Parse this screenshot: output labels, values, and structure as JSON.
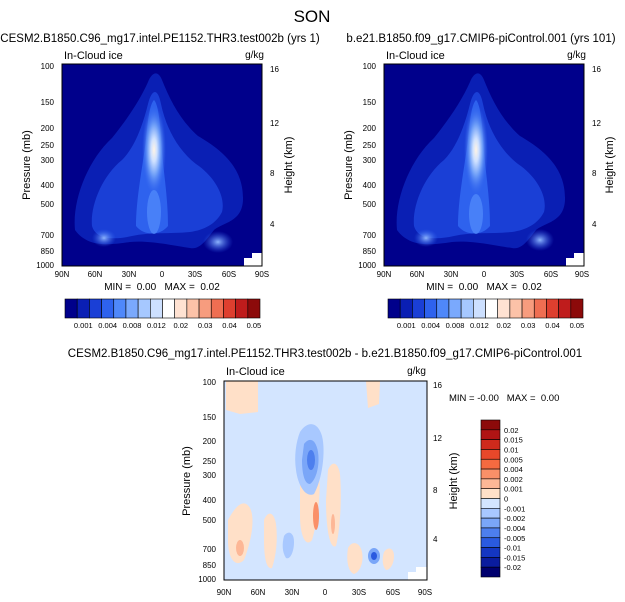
{
  "page_title": "SON",
  "chart_data": [
    {
      "type": "heatmap",
      "title": "CESM2.B1850.C96_mg17.intel.PE1152.THR3.test002b (yrs 1)",
      "subtitle_left": "In-Cloud ice",
      "units": "g/kg",
      "ylabel": "Pressure (mb)",
      "ylabel_right": "Height (km)",
      "xticks": [
        "90N",
        "60N",
        "30N",
        "0",
        "30S",
        "60S",
        "90S"
      ],
      "yticks": [
        "100",
        "150",
        "200",
        "250",
        "300",
        "400",
        "500",
        "700",
        "850",
        "1000"
      ],
      "yticks_right": [
        "16",
        "12",
        "8",
        "4"
      ],
      "minmax_text": "MIN =  0.00   MAX =  0.02"
    },
    {
      "type": "heatmap",
      "title": "b.e21.B1850.f09_g17.CMIP6-piControl.001 (yrs 101)",
      "subtitle_left": "In-Cloud ice",
      "units": "g/kg",
      "ylabel": "Pressure (mb)",
      "ylabel_right": "Height (km)",
      "xticks": [
        "90N",
        "60N",
        "30N",
        "0",
        "30S",
        "60S",
        "90S"
      ],
      "yticks": [
        "100",
        "150",
        "200",
        "250",
        "300",
        "400",
        "500",
        "700",
        "850",
        "1000"
      ],
      "yticks_right": [
        "16",
        "12",
        "8",
        "4"
      ],
      "minmax_text": "MIN =  0.00   MAX =  0.02"
    },
    {
      "type": "heatmap",
      "title": "CESM2.B1850.C96_mg17.intel.PE1152.THR3.test002b - b.e21.B1850.f09_g17.CMIP6-piControl.001",
      "subtitle_left": "In-Cloud ice",
      "units": "g/kg",
      "ylabel": "Pressure (mb)",
      "ylabel_right": "Height (km)",
      "xticks": [
        "90N",
        "60N",
        "30N",
        "0",
        "30S",
        "60S",
        "90S"
      ],
      "yticks": [
        "100",
        "150",
        "200",
        "250",
        "300",
        "400",
        "500",
        "700",
        "850",
        "1000"
      ],
      "yticks_right": [
        "16",
        "12",
        "8",
        "4"
      ],
      "minmax_text": "MIN = -0.00   MAX =  0.00"
    }
  ],
  "colorbar_abs": {
    "labels": [
      "0.001",
      "0.004",
      "0.008",
      "0.012",
      "0.02",
      "0.03",
      "0.04",
      "0.05"
    ],
    "colors": [
      "#00008b",
      "#0a1fb4",
      "#1a3fd6",
      "#2e62ee",
      "#4f88fa",
      "#7aa9fd",
      "#a6c8ff",
      "#cde0ff",
      "#ffffff",
      "#ffe2d2",
      "#fcc2a8",
      "#f79c7e",
      "#ef6e52",
      "#de3f2f",
      "#bf1c1c",
      "#8c0a0a"
    ]
  },
  "colorbar_diff": {
    "labels": [
      "0.02",
      "0.015",
      "0.01",
      "0.005",
      "0.004",
      "0.002",
      "0.001",
      "0",
      "-0.001",
      "-0.002",
      "-0.004",
      "-0.005",
      "-0.01",
      "-0.015",
      "-0.02"
    ],
    "colors": [
      "#8c0a0a",
      "#b01414",
      "#cf2a1c",
      "#e8482a",
      "#f56a40",
      "#fa9068",
      "#fdb796",
      "#ffe0c8",
      "#d3e5ff",
      "#a8c8ff",
      "#7aa6f8",
      "#4d7fee",
      "#2a5ae0",
      "#1436c2",
      "#0a1c9e",
      "#00006e"
    ]
  }
}
